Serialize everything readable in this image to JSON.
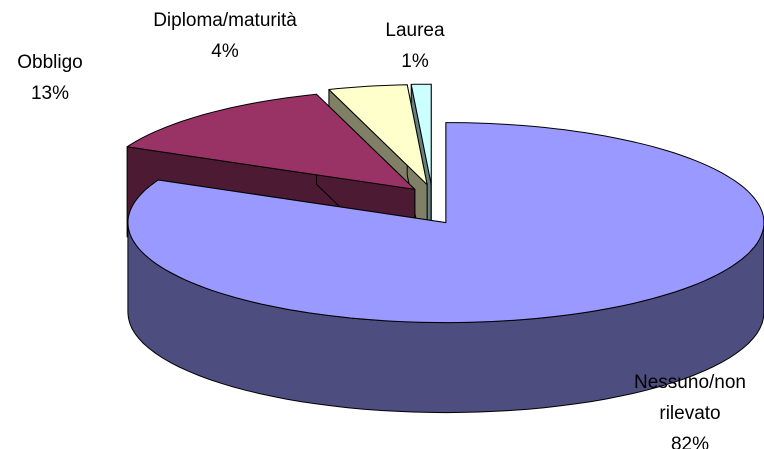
{
  "chart_data": {
    "type": "pie",
    "categories": [
      "Nessuno/non rilevato",
      "Obbligo",
      "Diploma/maturità",
      "Laurea"
    ],
    "values": [
      82,
      13,
      4,
      1
    ],
    "value_labels": [
      "82%",
      "13%",
      "4%",
      "1%"
    ],
    "colors": [
      "#9999ff",
      "#993366",
      "#ffffcc",
      "#ccffff"
    ]
  }
}
